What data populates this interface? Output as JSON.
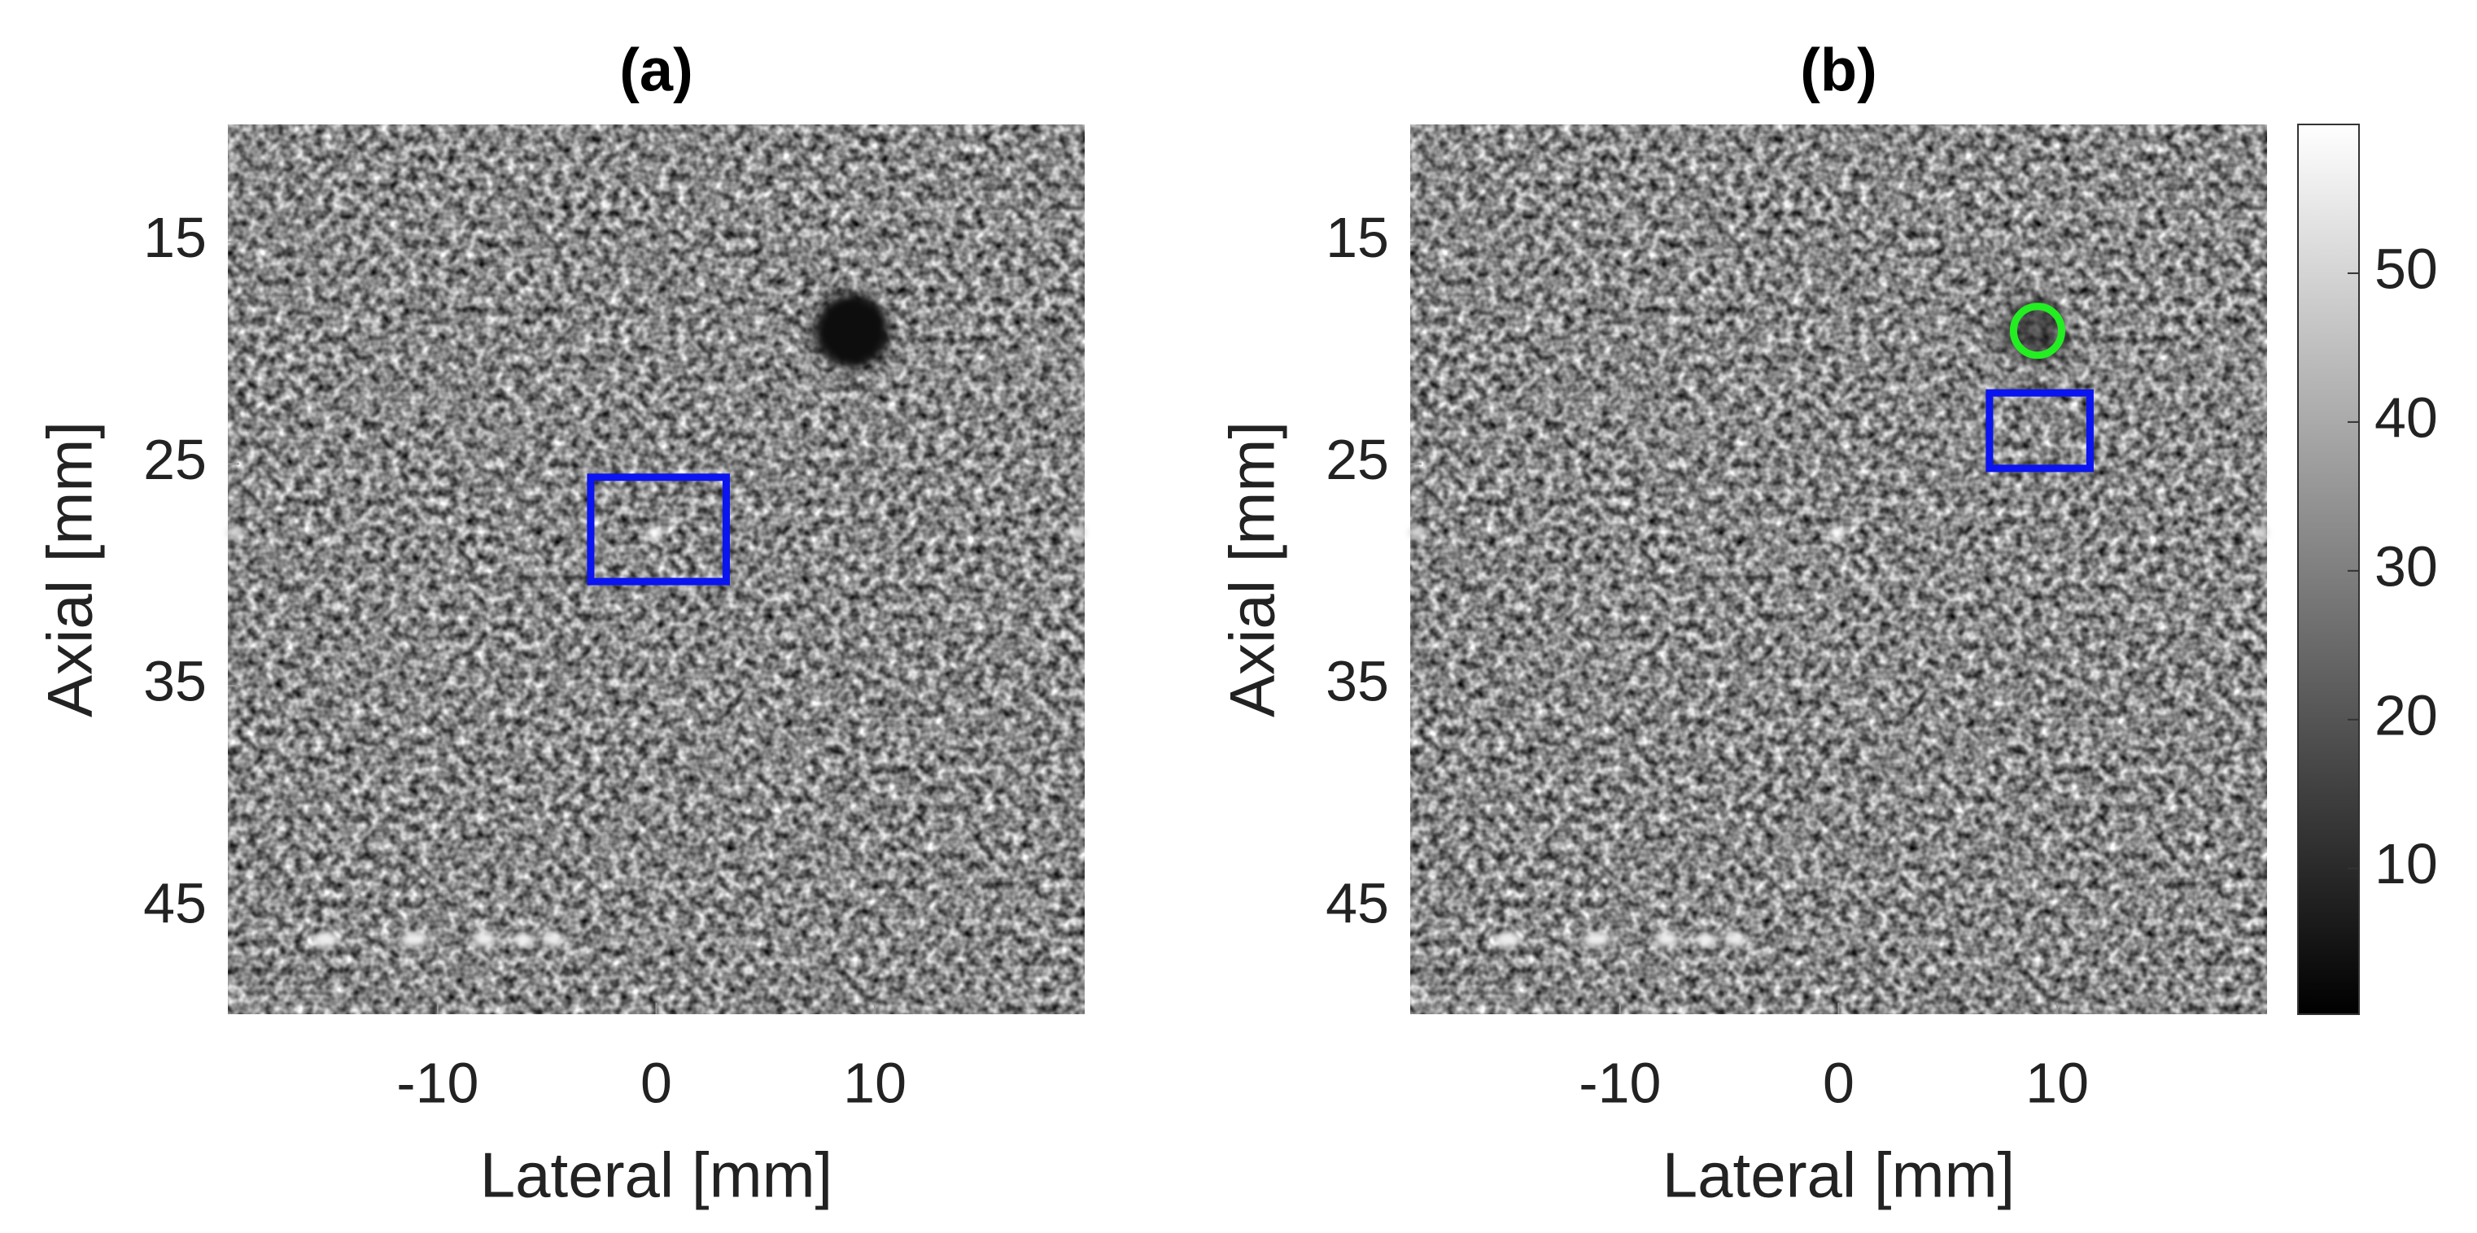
{
  "chart_data": [
    {
      "type": "image",
      "title": "(a)",
      "xlabel": "Lateral [mm]",
      "ylabel": "Axial [mm]",
      "xlim": [
        -19.6,
        19.6
      ],
      "ylim": [
        9.7,
        49.8
      ],
      "xticks": [
        -10,
        0,
        10
      ],
      "yticks": [
        15,
        25,
        35,
        45
      ],
      "rois": [
        {
          "shape": "rect",
          "x": [
            -3,
            3.2
          ],
          "y": [
            25.6,
            30.3
          ],
          "color": "#0a14f0"
        }
      ]
    },
    {
      "type": "image",
      "title": "(b)",
      "xlabel": "Lateral [mm]",
      "ylabel": "Axial [mm]",
      "xlim": [
        -19.6,
        19.6
      ],
      "ylim": [
        9.7,
        49.8
      ],
      "xticks": [
        -10,
        0,
        10
      ],
      "yticks": [
        15,
        25,
        35,
        45
      ],
      "rois": [
        {
          "shape": "rect",
          "x": [
            6.9,
            11.5
          ],
          "y": [
            21.8,
            25.2
          ],
          "color": "#0a14f0"
        },
        {
          "shape": "circle",
          "x": 9.1,
          "y": 19,
          "r": 1.1,
          "color": "#22ee22"
        }
      ],
      "colorbar": {
        "lim": [
          0.2,
          60
        ],
        "ticks": [
          10,
          20,
          30,
          40,
          50
        ]
      }
    }
  ]
}
